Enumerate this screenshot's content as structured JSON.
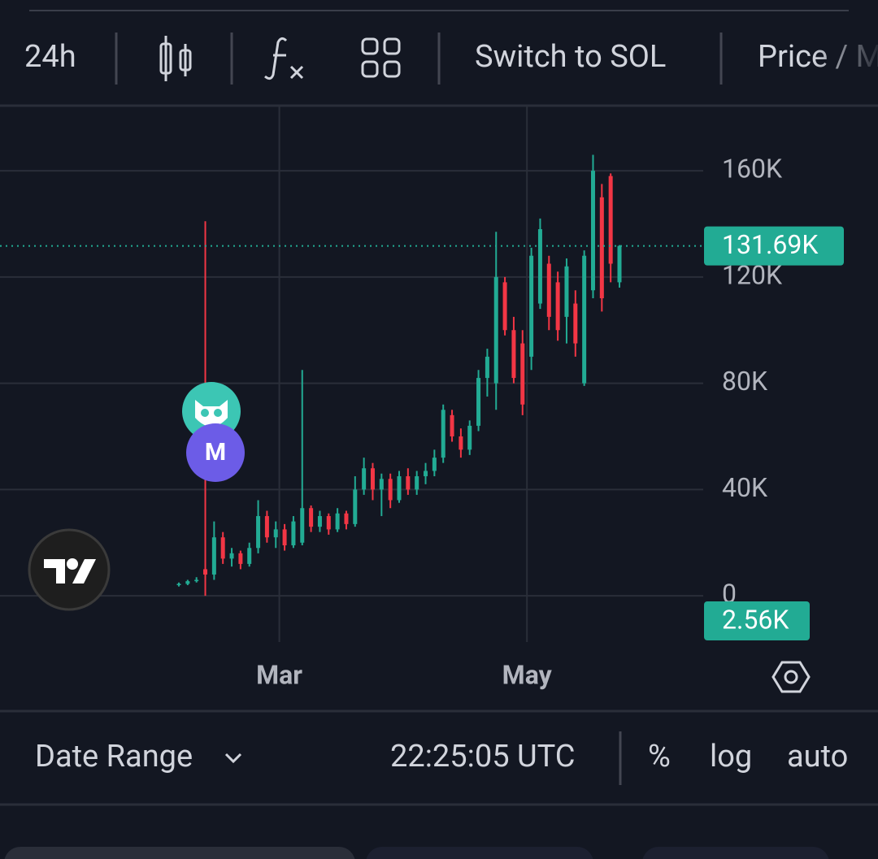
{
  "toolbar": {
    "interval": "24h",
    "switch": "Switch to SOL",
    "price": "Price / M"
  },
  "badges": {
    "m": "M"
  },
  "footer": {
    "date_range": "Date Range",
    "time": "22:25:05 UTC",
    "percent": "%",
    "log": "log",
    "auto": "auto"
  },
  "chart_data": {
    "type": "candlestick",
    "up_color": "#22ab94",
    "down_color": "#f23645",
    "categories": [
      null,
      null,
      null,
      null,
      null,
      null,
      null,
      null,
      null,
      null,
      null,
      null,
      null,
      null,
      null,
      null,
      null,
      null,
      null,
      null,
      null,
      null,
      null,
      null,
      null,
      null,
      null,
      null,
      null,
      null,
      null,
      null,
      null,
      null,
      null,
      null,
      null,
      null,
      null,
      null,
      null,
      null,
      null,
      null,
      null,
      null,
      null,
      null,
      null,
      null,
      null
    ],
    "open": [
      4000,
      4500,
      5500,
      10000,
      8000,
      22000,
      14000,
      16000,
      12000,
      18000,
      30000,
      22000,
      25000,
      19000,
      20000,
      33000,
      26000,
      30000,
      25000,
      31000,
      27000,
      40000,
      48000,
      40000,
      44000,
      36000,
      45000,
      40000,
      45000,
      47000,
      52000,
      68000,
      60000,
      55000,
      64000,
      82000,
      80000,
      118000,
      100000,
      95000,
      90000,
      110000,
      125000,
      118000,
      105000,
      110000,
      80000,
      115000,
      150000,
      158000,
      118000
    ],
    "high": [
      5000,
      6000,
      7000,
      141000,
      28000,
      24000,
      18000,
      17000,
      20000,
      36000,
      32000,
      28000,
      27000,
      30000,
      85000,
      34000,
      32000,
      31000,
      33000,
      32000,
      45000,
      52000,
      50000,
      46000,
      46000,
      47000,
      48000,
      47000,
      50000,
      55000,
      72000,
      70000,
      63000,
      66000,
      85000,
      93000,
      137000,
      120000,
      105000,
      100000,
      131000,
      142000,
      128000,
      122000,
      127000,
      115000,
      130000,
      166000,
      155000,
      159000,
      132000
    ],
    "low": [
      3500,
      4000,
      5000,
      0,
      6000,
      12000,
      11000,
      10000,
      11000,
      16000,
      20000,
      18000,
      17000,
      18000,
      19000,
      24000,
      24000,
      23000,
      24000,
      25000,
      26000,
      38000,
      36000,
      30000,
      33000,
      35000,
      38000,
      38000,
      42000,
      45000,
      50000,
      58000,
      52000,
      53000,
      62000,
      75000,
      70000,
      98000,
      80000,
      68000,
      85000,
      108000,
      100000,
      96000,
      95000,
      90000,
      79000,
      112000,
      107000,
      118000,
      116000
    ],
    "close": [
      4500,
      5500,
      6000,
      8000,
      22000,
      14000,
      16000,
      12000,
      18000,
      30000,
      22000,
      25000,
      19000,
      28000,
      33000,
      26000,
      30000,
      25000,
      31000,
      27000,
      40000,
      48000,
      40000,
      44000,
      36000,
      45000,
      40000,
      45000,
      47000,
      52000,
      70000,
      60000,
      55000,
      64000,
      82000,
      90000,
      120000,
      100000,
      82000,
      72000,
      128000,
      138000,
      105000,
      100000,
      124000,
      95000,
      128000,
      160000,
      112000,
      125000,
      131690
    ],
    "xticks": [
      {
        "value": 11.4,
        "label": "Mar"
      },
      {
        "value": 39.5,
        "label": "May"
      }
    ],
    "ylim": [
      -17400,
      184500
    ],
    "yticks": [
      {
        "value": 0,
        "label": "0"
      },
      {
        "value": 40000,
        "label": "40K"
      },
      {
        "value": 80000,
        "label": "80K"
      },
      {
        "value": 120000,
        "label": "120K"
      },
      {
        "value": 160000,
        "label": "160K"
      }
    ],
    "price_line": {
      "value": 131690,
      "label": "131.69K"
    },
    "volume_label": "2.56K",
    "grid": true
  }
}
